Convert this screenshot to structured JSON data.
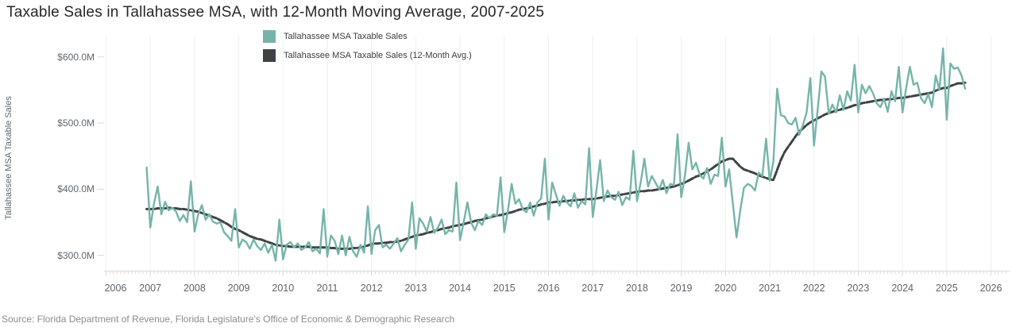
{
  "title": "Taxable Sales in Tallahassee MSA, with 12-Month Moving Average, 2007-2025",
  "source": "Source: Florida Department of Revenue, Florida Legislature's Office of Economic & Demographic Research",
  "colors": {
    "sales_line": "#76b4aa",
    "avg_line": "#3f4245",
    "gridline": "#edeef0",
    "axis": "#d7d9db",
    "tick_label": "#5b646c",
    "title_text": "#24272a",
    "source_text": "#8b8b8b"
  },
  "legend": [
    {
      "label": "Tallahassee MSA Taxable Sales",
      "color": "#76b4aa"
    },
    {
      "label": "Tallahassee MSA Taxable Sales (12-Month Avg.)",
      "color": "#3f4245"
    }
  ],
  "y_axis": {
    "title": "Tallahassee MSA Taxable Sales",
    "tick_labels": [
      "$600.0M",
      "$500.0M",
      "$400.0M",
      "$300.0M"
    ],
    "tick_values": [
      600,
      500,
      400,
      300
    ]
  },
  "x_axis": {
    "tick_labels": [
      "2006",
      "2007",
      "2008",
      "2009",
      "2010",
      "2011",
      "2012",
      "2013",
      "2014",
      "2015",
      "2016",
      "2017",
      "2018",
      "2019",
      "2020",
      "2021",
      "2022",
      "2023",
      "2024",
      "2025",
      "2026"
    ]
  },
  "chart_data": {
    "type": "line",
    "title": "Taxable Sales in Tallahassee MSA, with 12-Month Moving Average, 2007-2025",
    "xlabel": "",
    "ylabel": "Tallahassee MSA Taxable Sales",
    "unit": "USD millions",
    "frequency": "monthly",
    "start_month": "2006-12",
    "end_month": "2025-06",
    "x_range_years": [
      2006,
      2026
    ],
    "ylim_millions": [
      277,
      632
    ],
    "grid": "vertical-only",
    "legend_position": "top-center",
    "series": [
      {
        "name": "Tallahassee MSA Taxable Sales",
        "color": "#76b4aa",
        "width": 2.4,
        "dash": false,
        "values": [
          433,
          342,
          378,
          404,
          362,
          381,
          368,
          372,
          366,
          352,
          361,
          350,
          412,
          336,
          362,
          376,
          354,
          362,
          351,
          348,
          350,
          335,
          329,
          322,
          370,
          312,
          324,
          320,
          310,
          324,
          314,
          308,
          318,
          304,
          316,
          292,
          354,
          294,
          316,
          320,
          312,
          318,
          308,
          312,
          320,
          306,
          310,
          303,
          370,
          298,
          330,
          322,
          302,
          330,
          300,
          328,
          306,
          298,
          316,
          304,
          374,
          302,
          338,
          346,
          312,
          316,
          310,
          318,
          326,
          306,
          316,
          324,
          380,
          310,
          356,
          348,
          336,
          358,
          334,
          342,
          354,
          332,
          338,
          336,
          410,
          323,
          350,
          380,
          350,
          338,
          352,
          346,
          362,
          356,
          362,
          360,
          418,
          335,
          368,
          408,
          378,
          385,
          370,
          365,
          380,
          360,
          380,
          386,
          446,
          354,
          410,
          392,
          375,
          390,
          380,
          374,
          394,
          372,
          382,
          377,
          462,
          358,
          398,
          444,
          382,
          398,
          388,
          384,
          396,
          376,
          388,
          384,
          458,
          382,
          410,
          446,
          404,
          420,
          410,
          400,
          414,
          394,
          408,
          406,
          483,
          388,
          420,
          470,
          430,
          440,
          422,
          416,
          432,
          408,
          422,
          420,
          478,
          404,
          430,
          378,
          327,
          368,
          402,
          408,
          405,
          398,
          425,
          420,
          476,
          413,
          442,
          552,
          512,
          510,
          500,
          498,
          508,
          482,
          497,
          516,
          568,
          466,
          520,
          578,
          570,
          514,
          528,
          516,
          542,
          520,
          548,
          534,
          588,
          516,
          558,
          545,
          556,
          545,
          530,
          524,
          537,
          517,
          548,
          533,
          585,
          516,
          553,
          585,
          558,
          561,
          538,
          530,
          544,
          524,
          572,
          550,
          613,
          505,
          590,
          582,
          584,
          572,
          552
        ]
      },
      {
        "name": "Tallahassee MSA Taxable Sales (12-Month Avg.)",
        "color": "#3f4245",
        "width": 3,
        "dash": true,
        "values": [
          370,
          370,
          370,
          371,
          371,
          371,
          372,
          371,
          371,
          370,
          370,
          369,
          368,
          367,
          366,
          364,
          362,
          360,
          358,
          356,
          353,
          350,
          347,
          343,
          340,
          338,
          335,
          332,
          329,
          327,
          325,
          324,
          322,
          320,
          318,
          316,
          315,
          314,
          314,
          313,
          313,
          313,
          313,
          313,
          313,
          312,
          312,
          312,
          312,
          312,
          311,
          311,
          310,
          310,
          310,
          310,
          311,
          311,
          312,
          313,
          315,
          317,
          318,
          318,
          319,
          319,
          320,
          320,
          321,
          322,
          324,
          326,
          328,
          330,
          331,
          332,
          334,
          335,
          337,
          338,
          340,
          341,
          342,
          344,
          345,
          346,
          347,
          349,
          350,
          352,
          353,
          354,
          356,
          357,
          359,
          360,
          361,
          362,
          364,
          365,
          367,
          369,
          370,
          371,
          372,
          374,
          375,
          377,
          378,
          380,
          380,
          381,
          381,
          382,
          382,
          383,
          383,
          384,
          384,
          385,
          385,
          385,
          386,
          387,
          388,
          389,
          390,
          390,
          391,
          392,
          393,
          394,
          395,
          396,
          397,
          397,
          398,
          398,
          399,
          400,
          401,
          402,
          403,
          404,
          406,
          408,
          410,
          413,
          416,
          419,
          421,
          424,
          427,
          430,
          434,
          438,
          442,
          444,
          446,
          446,
          440,
          434,
          430,
          428,
          426,
          424,
          421,
          419,
          417,
          415,
          414,
          429,
          444,
          456,
          464,
          472,
          480,
          487,
          492,
          497,
          501,
          504,
          507,
          510,
          513,
          515,
          517,
          519,
          520,
          522,
          523,
          525,
          527,
          528,
          530,
          531,
          532,
          533,
          534,
          535,
          535,
          536,
          536,
          537,
          538,
          538,
          539,
          540,
          541,
          542,
          543,
          544,
          545,
          546,
          549,
          551,
          553,
          553,
          556,
          558,
          560,
          560,
          561
        ]
      }
    ]
  }
}
